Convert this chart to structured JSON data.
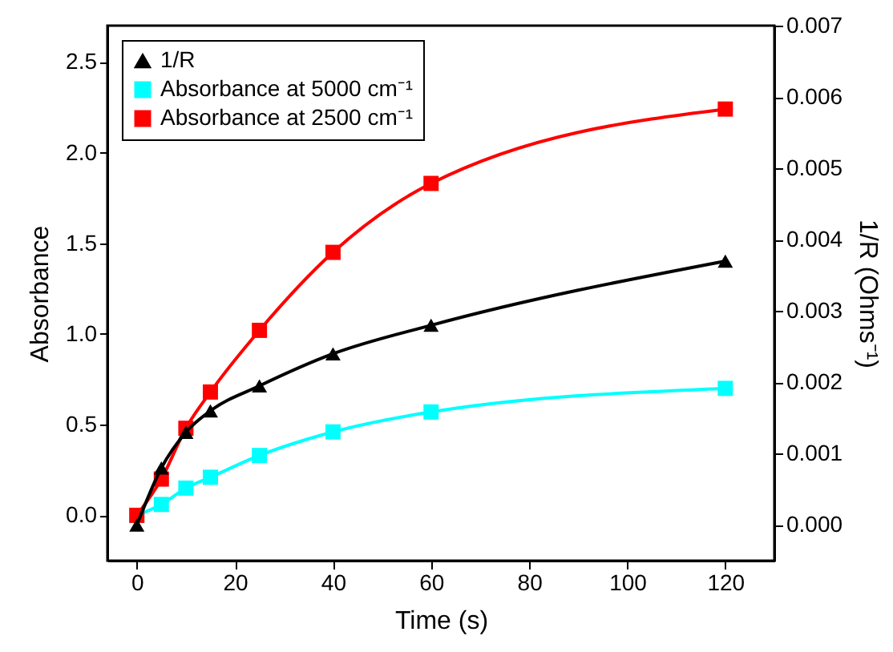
{
  "chart_data": {
    "type": "line",
    "xlabel": "Time (s)",
    "ylabel": "Absorbance",
    "y2label": "1/R (Ohms⁻¹)",
    "x": [
      0,
      5,
      10,
      15,
      25,
      40,
      60,
      120
    ],
    "xlim": [
      -6,
      130
    ],
    "xticks": [
      0,
      20,
      40,
      60,
      80,
      100,
      120
    ],
    "ylim": [
      -0.25,
      2.7
    ],
    "yticks": [
      {
        "value": 0,
        "label": "0.0"
      },
      0.5,
      {
        "value": 1,
        "label": "1.0"
      },
      1.5,
      {
        "value": 2,
        "label": "2.0"
      },
      2.5
    ],
    "y2lim": [
      -0.0005,
      0.007
    ],
    "y2ticks": [
      {
        "value": 0,
        "label": "0.000"
      },
      0.001,
      0.002,
      0.003,
      0.004,
      0.005,
      0.006,
      0.007
    ],
    "grid": false,
    "legend": "top left",
    "series": [
      {
        "name": "1/R",
        "color": "#000000",
        "marker": "triangle",
        "axis": "y2",
        "values": [
          0.0,
          0.0008,
          0.0013,
          0.0016,
          0.00195,
          0.0024,
          0.0028,
          0.0037
        ]
      },
      {
        "name": "Absorbance at 5000 cm⁻¹",
        "color": "#00ffff",
        "marker": "square",
        "values": [
          0.0,
          0.06,
          0.15,
          0.21,
          0.33,
          0.46,
          0.57,
          0.7
        ]
      },
      {
        "name": "Absorbance at 2500 cm⁻¹",
        "color": "#ff0000",
        "marker": "square",
        "values": [
          0.0,
          0.2,
          0.48,
          0.68,
          1.02,
          1.45,
          1.83,
          2.24
        ]
      }
    ]
  }
}
